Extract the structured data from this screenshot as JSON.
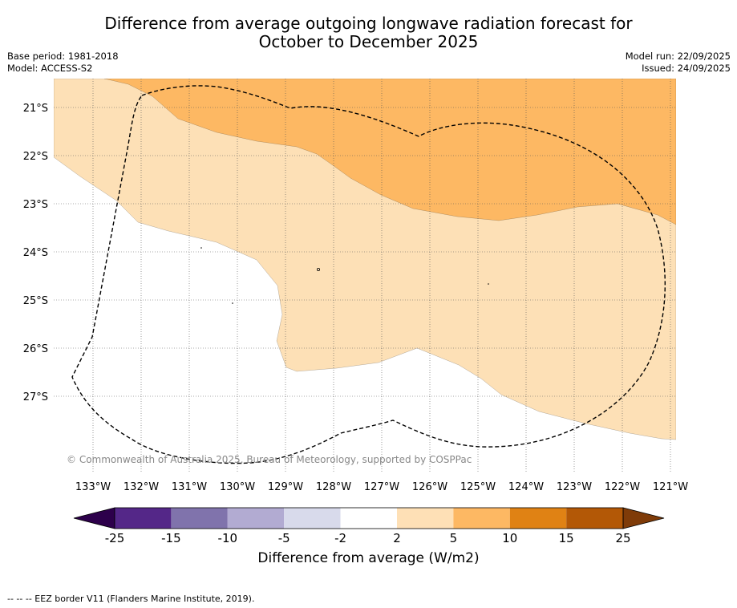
{
  "header": {
    "title_line1": "Difference from average outgoing longwave radiation forecast for",
    "title_line2": "October to December 2025",
    "base_period": "Base period: 1981-2018",
    "model": "Model: ACCESS-S2",
    "model_run": "Model run: 22/09/2025",
    "issued": "Issued: 24/09/2025"
  },
  "map": {
    "lat_labels": [
      "21°S",
      "22°S",
      "23°S",
      "24°S",
      "25°S",
      "26°S",
      "27°S"
    ],
    "lon_labels": [
      "133°W",
      "132°W",
      "131°W",
      "130°W",
      "129°W",
      "128°W",
      "127°W",
      "126°W",
      "125°W",
      "124°W",
      "123°W",
      "122°W",
      "121°W"
    ],
    "copyright": "© Commonwealth of Australia 2025, Bureau of Meteorology, supported by COSPPac",
    "colors": {
      "land_pale": "#fde0b6",
      "orange_5_10": "#fdb863",
      "white": "#ffffff"
    }
  },
  "legend": {
    "ticks": [
      "-25",
      "-15",
      "-10",
      "-5",
      "-2",
      "2",
      "5",
      "10",
      "15",
      "25"
    ],
    "colors": [
      "#2d004b",
      "#542788",
      "#8073ac",
      "#b2abd2",
      "#d8daeb",
      "#ffffff",
      "#fee0b6",
      "#fdb863",
      "#e08214",
      "#b35806",
      "#7f3b08"
    ],
    "title": "Difference from average (W/m2)"
  },
  "footer": {
    "eez_note": "-- -- -- EEZ border V11 (Flanders Marine Institute, 2019)."
  }
}
